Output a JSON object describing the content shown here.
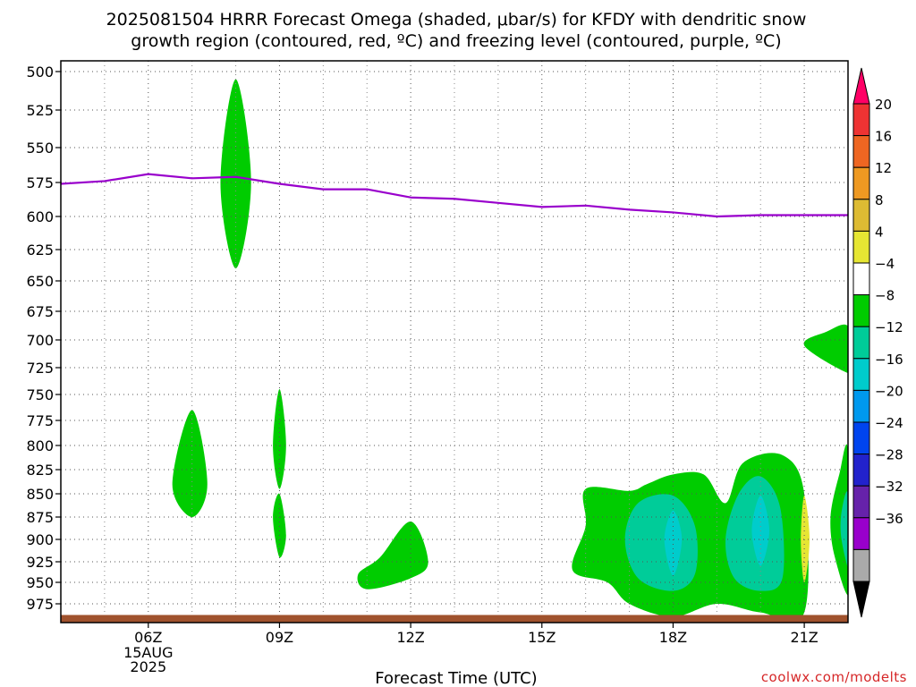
{
  "chart_data": {
    "type": "heatmap",
    "title_line1": "2025081504 HRRR Forecast Omega (shaded, μbar/s) for KFDY with dendritic snow",
    "title_line2": "growth region (contoured, red, ºC) and freezing level (contoured, purple, ºC)",
    "xlabel": "Forecast Time (UTC)",
    "x_ticks": [
      {
        "hour": 6,
        "label": "06Z",
        "sub": [
          "15AUG",
          "2025"
        ]
      },
      {
        "hour": 9,
        "label": "09Z",
        "sub": []
      },
      {
        "hour": 12,
        "label": "12Z",
        "sub": []
      },
      {
        "hour": 15,
        "label": "15Z",
        "sub": []
      },
      {
        "hour": 18,
        "label": "18Z",
        "sub": []
      },
      {
        "hour": 21,
        "label": "21Z",
        "sub": []
      }
    ],
    "xlim": [
      4,
      22
    ],
    "y_ticks": [
      "500",
      "525",
      "550",
      "575",
      "600",
      "625",
      "650",
      "675",
      "700",
      "725",
      "750",
      "775",
      "800",
      "825",
      "850",
      "875",
      "900",
      "925",
      "950",
      "975"
    ],
    "ylim": [
      500,
      990
    ],
    "freezing_level": {
      "color": "#9900cc",
      "points": [
        [
          4,
          576
        ],
        [
          5,
          574
        ],
        [
          6,
          569
        ],
        [
          7,
          572
        ],
        [
          8,
          571
        ],
        [
          9,
          576
        ],
        [
          10,
          580
        ],
        [
          11,
          580
        ],
        [
          12,
          586
        ],
        [
          13,
          587
        ],
        [
          14,
          590
        ],
        [
          15,
          593
        ],
        [
          16,
          592
        ],
        [
          17,
          595
        ],
        [
          18,
          597
        ],
        [
          19,
          600
        ],
        [
          20,
          599
        ],
        [
          21,
          599
        ],
        [
          22,
          599
        ]
      ]
    },
    "ground": {
      "color": "#a0522d",
      "pressure": 988
    },
    "omega_areas": [
      {
        "fill": "#00cc00",
        "points": [
          [
            8,
            505
          ],
          [
            8.35,
            575
          ],
          [
            8,
            640
          ],
          [
            7.65,
            575
          ]
        ]
      },
      {
        "fill": "#00cc00",
        "points": [
          [
            7,
            765
          ],
          [
            7.35,
            840
          ],
          [
            7,
            875
          ],
          [
            6.55,
            840
          ]
        ]
      },
      {
        "fill": "#00cc00",
        "points": [
          [
            9,
            745
          ],
          [
            9.15,
            800
          ],
          [
            9,
            845
          ],
          [
            8.85,
            800
          ]
        ]
      },
      {
        "fill": "#00cc00",
        "points": [
          [
            9,
            850
          ],
          [
            9.15,
            895
          ],
          [
            9,
            920
          ],
          [
            8.85,
            875
          ]
        ]
      },
      {
        "fill": "#00cc00",
        "points": [
          [
            12,
            880
          ],
          [
            12.4,
            925
          ],
          [
            12,
            945
          ],
          [
            11,
            958
          ],
          [
            10.8,
            940
          ],
          [
            11.3,
            920
          ]
        ]
      },
      {
        "fill": "#00cc00",
        "points": [
          [
            16,
            845
          ],
          [
            17,
            847
          ],
          [
            17.4,
            840
          ],
          [
            18,
            830
          ],
          [
            18.7,
            830
          ],
          [
            19.2,
            860
          ],
          [
            19.6,
            818
          ],
          [
            20.5,
            810
          ],
          [
            21,
            850
          ],
          [
            21,
            985
          ],
          [
            20,
            985
          ],
          [
            19,
            975
          ],
          [
            18,
            990
          ],
          [
            17,
            975
          ],
          [
            16.5,
            950
          ],
          [
            15.7,
            935
          ],
          [
            16,
            885
          ]
        ]
      },
      {
        "fill": "#00cc99",
        "points": [
          [
            18,
            852
          ],
          [
            18.5,
            885
          ],
          [
            18.5,
            940
          ],
          [
            18,
            960
          ],
          [
            17.2,
            945
          ],
          [
            16.9,
            900
          ],
          [
            17.2,
            860
          ]
        ]
      },
      {
        "fill": "#00cc99",
        "points": [
          [
            20,
            832
          ],
          [
            20.45,
            865
          ],
          [
            20.5,
            945
          ],
          [
            20,
            960
          ],
          [
            19.4,
            945
          ],
          [
            19.2,
            900
          ],
          [
            19.5,
            850
          ]
        ]
      },
      {
        "fill": "#00cccc",
        "points": [
          [
            18,
            868
          ],
          [
            18.2,
            900
          ],
          [
            18,
            942
          ],
          [
            17.8,
            900
          ]
        ]
      },
      {
        "fill": "#00cccc",
        "points": [
          [
            20,
            852
          ],
          [
            20.2,
            890
          ],
          [
            20,
            930
          ],
          [
            19.8,
            890
          ]
        ]
      },
      {
        "fill": "#e6e633",
        "points": [
          [
            21,
            852
          ],
          [
            21.12,
            900
          ],
          [
            21,
            950
          ],
          [
            20.92,
            900
          ]
        ]
      },
      {
        "fill": "#00cc00",
        "points": [
          [
            22,
            688
          ],
          [
            22.05,
            720
          ],
          [
            22,
            730
          ],
          [
            21,
            705
          ],
          [
            21.5,
            693
          ]
        ]
      },
      {
        "fill": "#00cc00",
        "points": [
          [
            22,
            805
          ],
          [
            22.05,
            960
          ],
          [
            21.7,
            920
          ],
          [
            21.6,
            875
          ],
          [
            21.8,
            830
          ]
        ]
      },
      {
        "fill": "#00cc99",
        "points": [
          [
            22,
            850
          ],
          [
            22.05,
            935
          ],
          [
            21.85,
            900
          ],
          [
            21.85,
            870
          ]
        ]
      }
    ],
    "colorbar": {
      "labels": [
        "20",
        "16",
        "12",
        "8",
        "4",
        "-4",
        "-8",
        "-12",
        "-16",
        "-20",
        "-24",
        "-28",
        "-32",
        "-36"
      ],
      "colors": [
        "#ff0066",
        "#ee3333",
        "#ee6622",
        "#ee9922",
        "#ddbb33",
        "#e6e633",
        "#ffffff",
        "#00cc00",
        "#00cc99",
        "#00cccc",
        "#0099ee",
        "#0044ee",
        "#2222cc",
        "#6622aa",
        "#9900cc",
        "#aaaaaa",
        "#000000"
      ]
    },
    "credit": "coolwx.com/modelts"
  }
}
